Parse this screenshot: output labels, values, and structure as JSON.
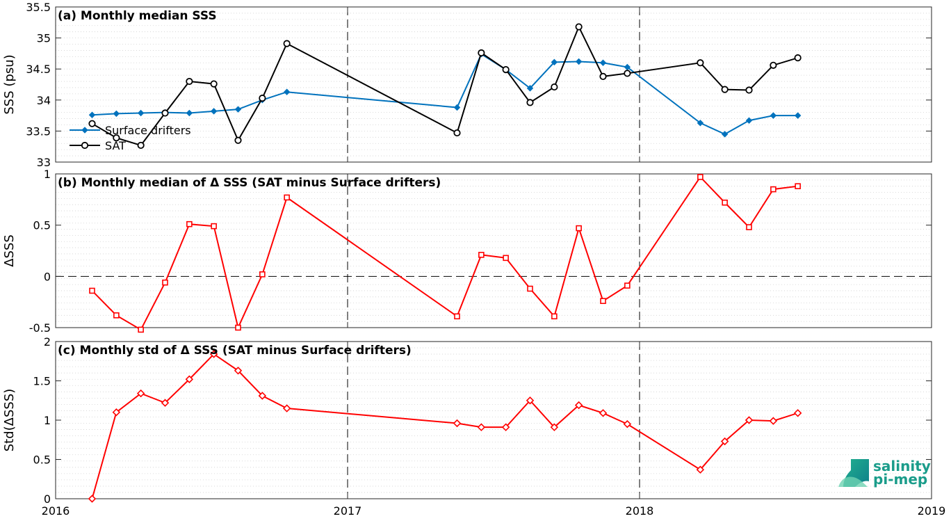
{
  "logo": {
    "line1": "salinity",
    "line2": "pi-mep",
    "color": "#1a9c8a"
  },
  "x_ticks": [
    "2016",
    "2017",
    "2018",
    "2019"
  ],
  "colors": {
    "drifters": "#0072bd",
    "sat": "#000000",
    "diff": "#ff0000"
  },
  "chart_data": [
    {
      "type": "line",
      "title": "(a) Monthly median SSS",
      "ylabel": "SSS (psu)",
      "ylim": [
        33,
        35.5
      ],
      "y_ticks": [
        "33",
        "33.5",
        "34",
        "34.5",
        "35",
        "35.5"
      ],
      "xlim": [
        2016.0,
        2019.0
      ],
      "legend": {
        "position": "bottom-left",
        "entries": [
          "Surface drifters",
          "SAT"
        ]
      },
      "series": [
        {
          "name": "Surface drifters",
          "marker": "diamond",
          "x": [
            2016.125,
            2016.208,
            2016.292,
            2016.375,
            2016.458,
            2016.542,
            2016.625,
            2016.708,
            2016.792,
            2017.375,
            2017.458,
            2017.542,
            2017.625,
            2017.708,
            2017.792,
            2017.875,
            2017.958,
            2018.208,
            2018.292,
            2018.375,
            2018.458,
            2018.542
          ],
          "y": [
            33.76,
            33.78,
            33.79,
            33.8,
            33.79,
            33.82,
            33.85,
            34.0,
            34.13,
            33.88,
            34.74,
            34.49,
            34.19,
            34.61,
            34.62,
            34.6,
            34.53,
            33.63,
            33.45,
            33.67,
            33.75,
            33.75
          ]
        },
        {
          "name": "SAT",
          "marker": "circle",
          "x": [
            2016.125,
            2016.208,
            2016.292,
            2016.375,
            2016.458,
            2016.542,
            2016.625,
            2016.708,
            2016.792,
            2017.375,
            2017.458,
            2017.542,
            2017.625,
            2017.708,
            2017.792,
            2017.875,
            2017.958,
            2018.208,
            2018.292,
            2018.375,
            2018.458,
            2018.542
          ],
          "y": [
            33.62,
            33.39,
            33.27,
            33.79,
            34.3,
            34.26,
            33.35,
            34.03,
            34.91,
            33.47,
            34.76,
            34.49,
            33.96,
            34.21,
            35.18,
            34.38,
            34.43,
            34.6,
            34.17,
            34.16,
            34.56,
            34.68
          ]
        }
      ]
    },
    {
      "type": "line",
      "title": "(b) Monthly median of Δ SSS (SAT minus Surface drifters)",
      "ylabel": "ΔSSS",
      "ylim": [
        -0.5,
        1
      ],
      "y_ticks": [
        "-0.5",
        "0",
        "0.5",
        "1"
      ],
      "xlim": [
        2016.0,
        2019.0
      ],
      "reference_line": 0,
      "series": [
        {
          "name": "",
          "marker": "square",
          "x": [
            2016.125,
            2016.208,
            2016.292,
            2016.375,
            2016.458,
            2016.542,
            2016.625,
            2016.708,
            2016.792,
            2017.375,
            2017.458,
            2017.542,
            2017.625,
            2017.708,
            2017.792,
            2017.875,
            2017.958,
            2018.208,
            2018.292,
            2018.375,
            2018.458,
            2018.542
          ],
          "y": [
            -0.14,
            -0.38,
            -0.52,
            -0.06,
            0.51,
            0.49,
            -0.5,
            0.02,
            0.77,
            -0.39,
            0.21,
            0.18,
            -0.12,
            -0.39,
            0.47,
            -0.24,
            -0.09,
            0.97,
            0.72,
            0.48,
            0.85,
            0.88
          ]
        }
      ]
    },
    {
      "type": "line",
      "title": "(c) Monthly std of Δ SSS (SAT minus Surface drifters)",
      "ylabel": "Std(ΔSSS)",
      "ylim": [
        0,
        2
      ],
      "y_ticks": [
        "0",
        "0.5",
        "1",
        "1.5",
        "2"
      ],
      "xlim": [
        2016.0,
        2019.0
      ],
      "series": [
        {
          "name": "",
          "marker": "diamond",
          "x": [
            2016.125,
            2016.208,
            2016.292,
            2016.375,
            2016.458,
            2016.542,
            2016.625,
            2016.708,
            2016.792,
            2017.375,
            2017.458,
            2017.542,
            2017.625,
            2017.708,
            2017.792,
            2017.875,
            2017.958,
            2018.208,
            2018.292,
            2018.375,
            2018.458,
            2018.542
          ],
          "y": [
            0.0,
            1.1,
            1.34,
            1.22,
            1.52,
            1.84,
            1.63,
            1.31,
            1.15,
            0.96,
            0.91,
            0.91,
            1.25,
            0.91,
            1.19,
            1.09,
            0.95,
            0.37,
            0.73,
            1.0,
            0.99,
            1.09
          ]
        }
      ]
    }
  ]
}
